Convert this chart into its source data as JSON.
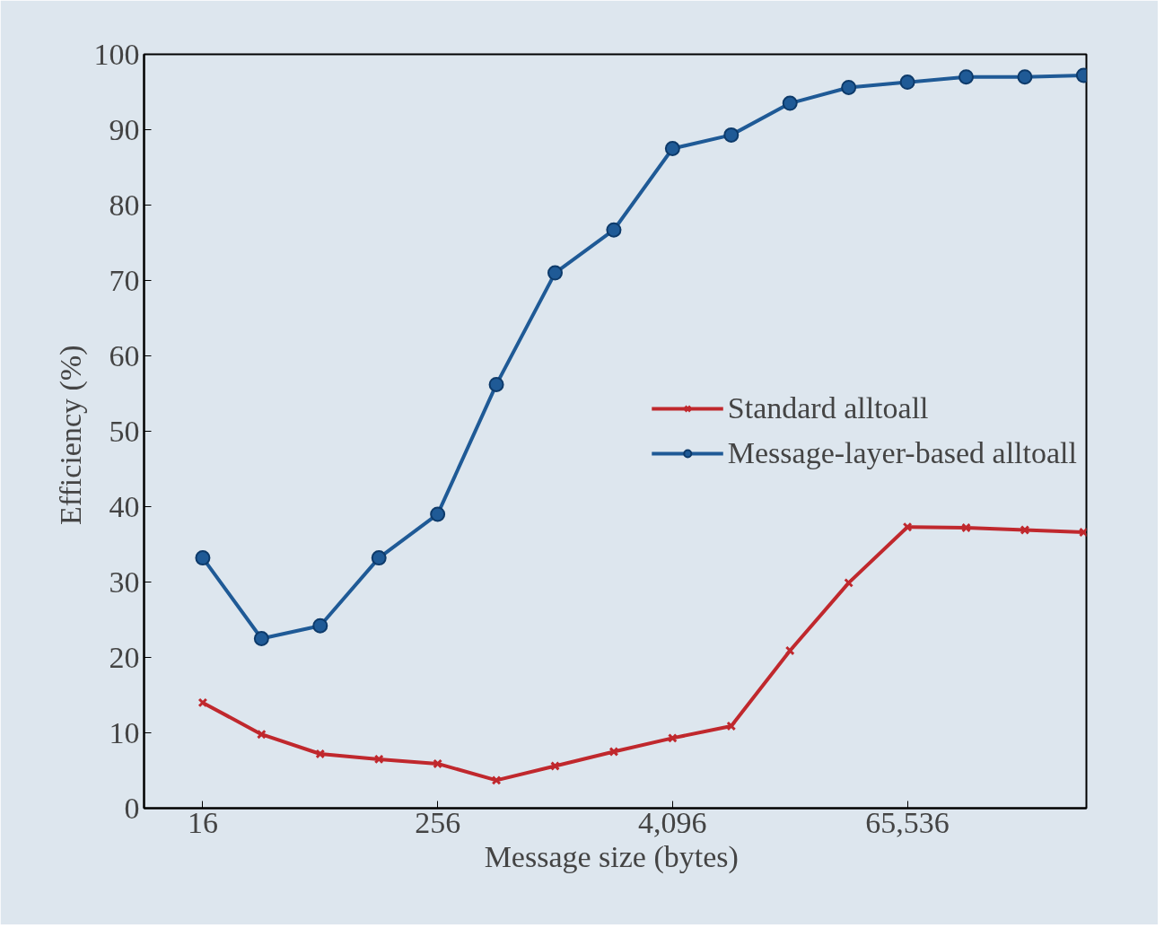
{
  "chart_data": {
    "type": "line",
    "xlabel": "Message size  (bytes)",
    "ylabel": "Efficiency  (%)",
    "x": [
      16,
      32,
      64,
      128,
      256,
      512,
      1024,
      2048,
      4096,
      8192,
      16384,
      32768,
      65536,
      131072,
      262144,
      524288
    ],
    "series": [
      {
        "name": "Standard alltoall",
        "color": "#c0282d",
        "marker": "cross",
        "values": [
          14.0,
          9.8,
          7.2,
          6.5,
          5.9,
          3.7,
          5.6,
          7.5,
          9.3,
          10.9,
          20.9,
          29.9,
          37.3,
          37.2,
          36.9,
          36.6
        ]
      },
      {
        "name": "Message-layer-based alltoall",
        "color": "#1f5a96",
        "marker": "circle",
        "values": [
          33.2,
          22.5,
          24.2,
          33.2,
          39.0,
          56.2,
          71.0,
          76.7,
          87.5,
          89.3,
          93.5,
          95.6,
          96.3,
          97.0,
          97.0,
          97.2
        ]
      }
    ],
    "log": "x",
    "xlim": [
      8,
      542000
    ],
    "xticks": [
      16,
      256,
      {
        "value": 4096,
        "label": "4,096"
      },
      {
        "value": 65536,
        "label": "65,536"
      }
    ],
    "ylim": [
      0,
      100
    ],
    "yticks": [
      0,
      10,
      20,
      30,
      40,
      50,
      60,
      70,
      80,
      90,
      100
    ],
    "grid": false,
    "legend": "right",
    "line_style": "solid"
  }
}
